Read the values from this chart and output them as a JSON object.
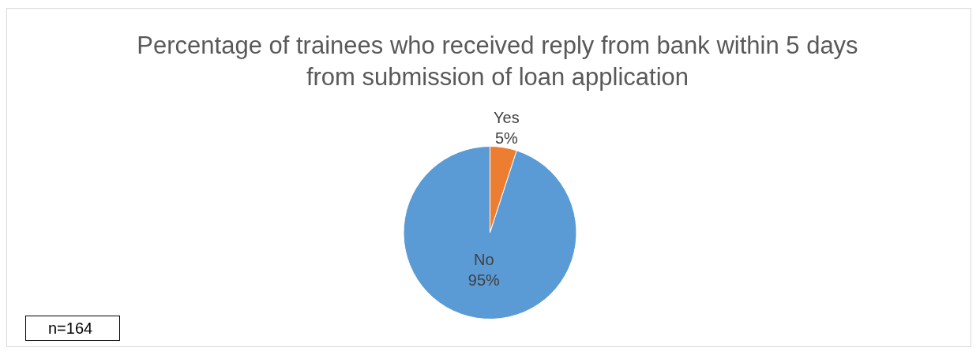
{
  "chart_data": {
    "type": "pie",
    "title": "Percentage of trainees who received reply from bank within 5 days from submission of loan application",
    "categories": [
      "Yes",
      "No"
    ],
    "values": [
      5,
      95
    ],
    "value_labels": [
      "5%",
      "95%"
    ],
    "colors": [
      "#ed7d31",
      "#5b9bd5"
    ],
    "legend": false,
    "annotations": [
      "n=164"
    ]
  }
}
